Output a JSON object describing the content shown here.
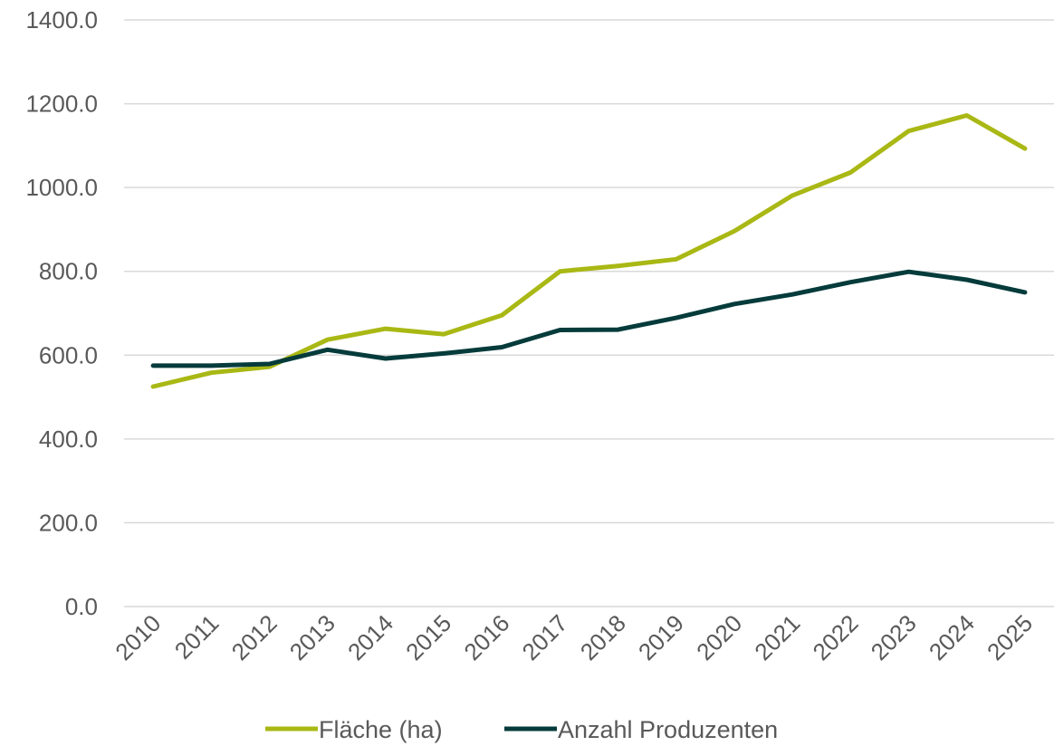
{
  "chart_data": {
    "type": "line",
    "title": "",
    "xlabel": "",
    "ylabel": "",
    "categories": [
      "2010",
      "2011",
      "2012",
      "2013",
      "2014",
      "2015",
      "2016",
      "2017",
      "2018",
      "2019",
      "2020",
      "2021",
      "2022",
      "2023",
      "2024",
      "2025"
    ],
    "y_ticks": [
      "0.0",
      "200.0",
      "400.0",
      "600.0",
      "800.0",
      "1000.0",
      "1200.0",
      "1400.0"
    ],
    "ylim": [
      0,
      1400
    ],
    "grid": "horizontal",
    "legend_position": "bottom",
    "series": [
      {
        "name": "Fläche (ha)",
        "color": "#a9b814",
        "values": [
          525,
          558,
          572,
          637,
          663,
          650,
          695,
          800,
          813,
          829,
          896,
          981,
          1036,
          1135,
          1172,
          1093
        ]
      },
      {
        "name": "Anzahl Produzenten",
        "color": "#053b3b",
        "values": [
          575,
          575,
          579,
          613,
          592,
          604,
          619,
          660,
          661,
          689,
          722,
          745,
          774,
          799,
          780,
          750
        ]
      }
    ]
  }
}
